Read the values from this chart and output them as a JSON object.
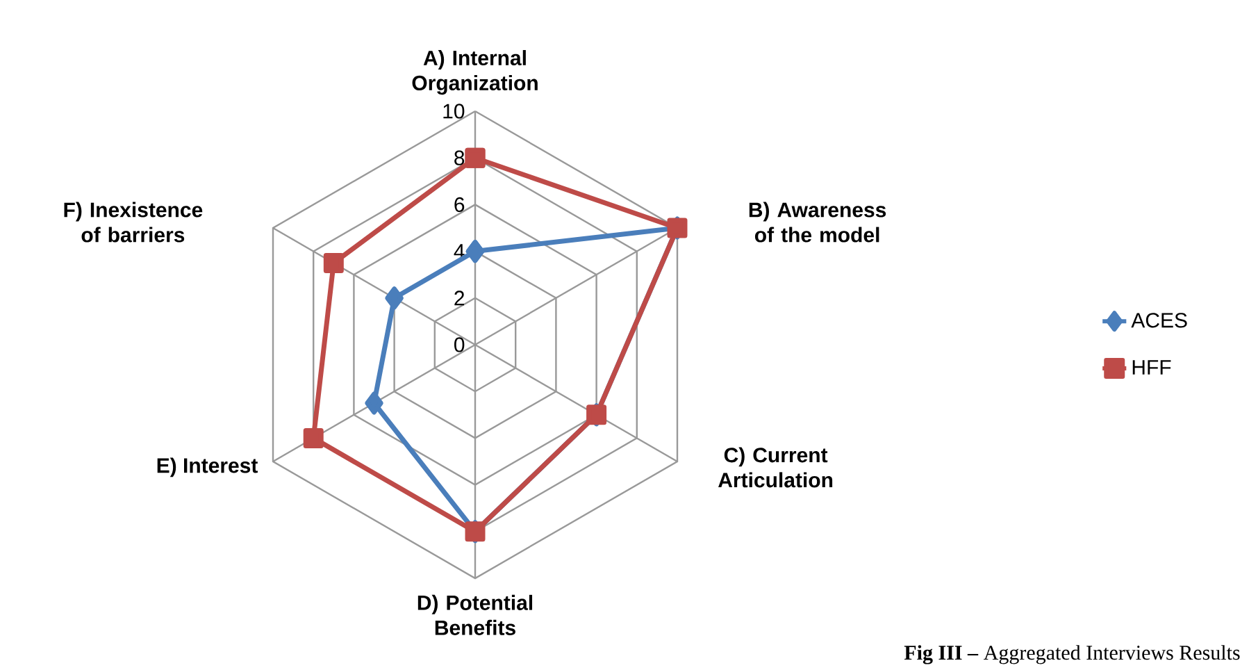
{
  "chart_data": {
    "type": "radar",
    "categories": [
      "A) Internal Organization",
      "B) Awareness of the model",
      "C) Current Articulation",
      "D) Potential Benefits",
      "E) Interest",
      "F) Inexistence of barriers"
    ],
    "series": [
      {
        "name": "ACES",
        "color": "#4a7ebb",
        "marker": "diamond",
        "values": [
          4,
          10,
          6,
          8,
          5,
          4
        ]
      },
      {
        "name": "HFF",
        "color": "#be4b48",
        "marker": "square",
        "values": [
          8,
          10,
          6,
          8,
          8,
          7
        ]
      }
    ],
    "ylim": [
      0,
      10
    ],
    "yticks": [
      0,
      2,
      4,
      6,
      8,
      10
    ],
    "grid": true,
    "legend": "right",
    "annotations": [
      "**Fig III –** Aggregated Interviews Results"
    ]
  }
}
